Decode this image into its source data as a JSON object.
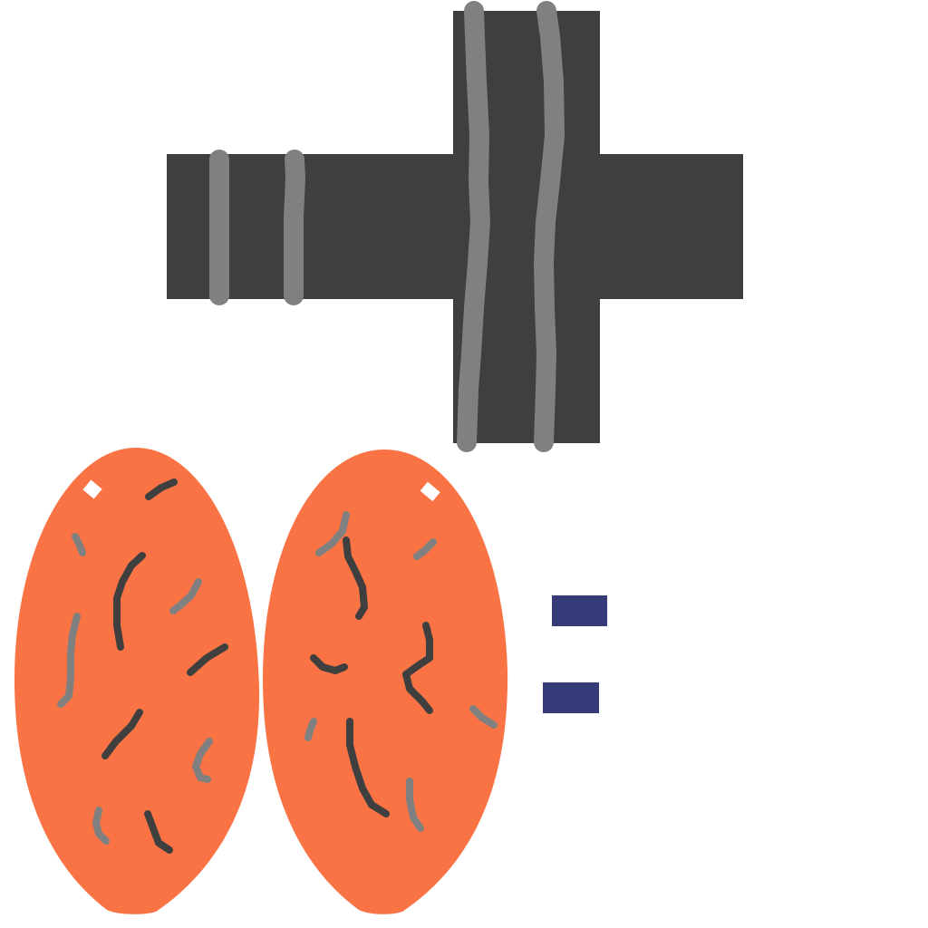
{
  "scene": {
    "elements": [
      {
        "name": "cross-shape",
        "shape": "plus-sign",
        "color": "#3f3f3f",
        "stripe_color": "#808080"
      },
      {
        "name": "left-oval",
        "shape": "oval",
        "color": "#fa7345",
        "vein_color_dark": "#3f3f3f",
        "vein_color_light": "#808080",
        "highlight_color": "#ffffff"
      },
      {
        "name": "right-oval",
        "shape": "oval",
        "color": "#fa7345",
        "vein_color_dark": "#3f3f3f",
        "vein_color_light": "#808080",
        "highlight_color": "#ffffff"
      },
      {
        "name": "equals-sign",
        "shape": "two-bars",
        "color": "#363c7a"
      }
    ]
  },
  "colors": {
    "background": "#ffffff",
    "cross": "#3f3f3f",
    "stripe": "#808080",
    "oval": "#fa7345",
    "vein_dark": "#3f3f3f",
    "vein_light": "#808080",
    "highlight": "#ffffff",
    "equals": "#363c7a"
  }
}
